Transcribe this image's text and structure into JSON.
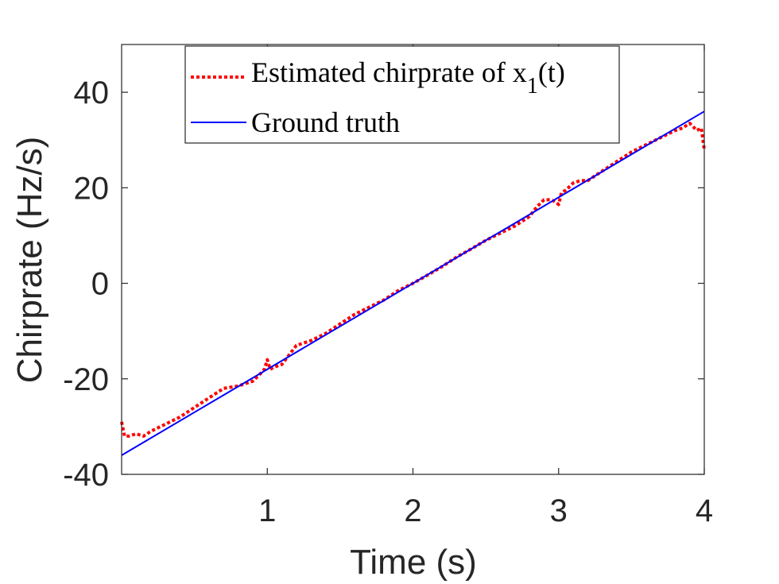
{
  "chart_data": {
    "type": "line",
    "title": "",
    "xlabel": "Time (s)",
    "ylabel": "Chirprate (Hz/s)",
    "xlim": [
      0,
      4
    ],
    "ylim": [
      -40,
      50
    ],
    "xticks": [
      1,
      2,
      3,
      4
    ],
    "yticks": [
      -40,
      -20,
      0,
      20,
      40
    ],
    "grid": false,
    "legend_position": "top-center",
    "legend": {
      "estimated_prefix": "Estimated chirprate of x",
      "estimated_subscript": "1",
      "estimated_suffix": "(t)",
      "ground_truth": "Ground truth"
    },
    "series": [
      {
        "name": "Estimated chirprate of x1(t)",
        "style": "dotted",
        "color": "#ff0000",
        "x": [
          0.0,
          0.02,
          0.05,
          0.1,
          0.15,
          0.2,
          0.3,
          0.4,
          0.5,
          0.6,
          0.7,
          0.8,
          0.9,
          0.95,
          0.98,
          1.0,
          1.02,
          1.05,
          1.1,
          1.15,
          1.2,
          1.3,
          1.4,
          1.5,
          1.6,
          1.7,
          1.8,
          1.9,
          2.0,
          2.1,
          2.2,
          2.3,
          2.4,
          2.5,
          2.6,
          2.7,
          2.8,
          2.85,
          2.9,
          2.95,
          2.98,
          3.0,
          3.02,
          3.05,
          3.1,
          3.15,
          3.2,
          3.3,
          3.4,
          3.5,
          3.6,
          3.7,
          3.8,
          3.85,
          3.9,
          3.95,
          3.98,
          4.0
        ],
        "y": [
          -29,
          -32,
          -32,
          -31.5,
          -32,
          -31,
          -29.5,
          -28,
          -26,
          -24,
          -22,
          -21.5,
          -20.5,
          -19,
          -18,
          -16,
          -18,
          -17.5,
          -17,
          -15,
          -13,
          -12,
          -10.5,
          -8.5,
          -6.5,
          -5,
          -3.5,
          -1.5,
          0,
          1.7,
          3.5,
          5.5,
          7.2,
          9,
          10.5,
          12,
          14,
          16,
          17.5,
          17.5,
          17,
          16.5,
          19,
          19.5,
          21,
          21.5,
          21.5,
          23.5,
          25.5,
          27.5,
          29,
          30.5,
          32,
          32.5,
          33.5,
          32,
          32.5,
          28
        ]
      },
      {
        "name": "Ground truth",
        "style": "solid",
        "color": "#0000ff",
        "x": [
          0,
          4
        ],
        "y": [
          -36,
          36
        ]
      }
    ]
  }
}
